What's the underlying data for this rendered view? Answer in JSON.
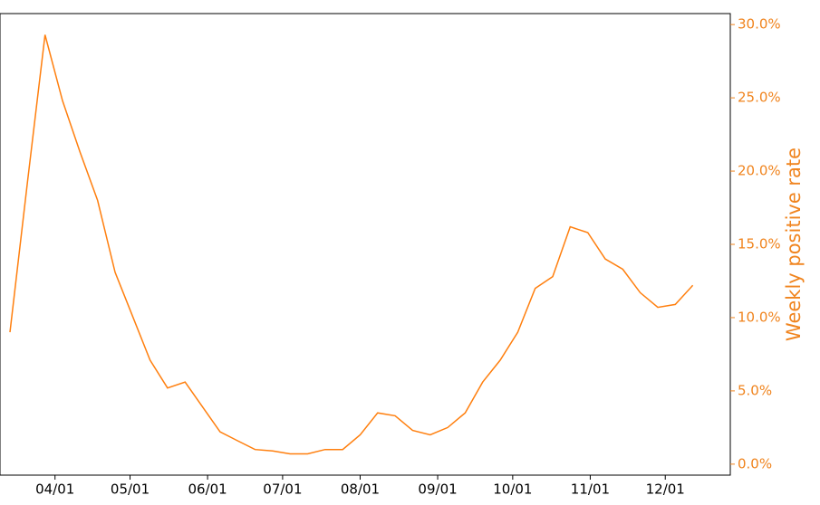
{
  "chart_data": {
    "type": "line",
    "x": [
      "03/14",
      "03/21",
      "03/28",
      "04/04",
      "04/11",
      "04/18",
      "04/25",
      "05/02",
      "05/09",
      "05/16",
      "05/23",
      "05/30",
      "06/06",
      "06/13",
      "06/20",
      "06/27",
      "07/04",
      "07/11",
      "07/18",
      "07/25",
      "08/01",
      "08/08",
      "08/15",
      "08/22",
      "08/29",
      "09/05",
      "09/12",
      "09/19",
      "09/26",
      "10/03",
      "10/10",
      "10/17",
      "10/24",
      "10/31",
      "11/07",
      "11/14",
      "11/21",
      "11/28",
      "12/05",
      "12/12"
    ],
    "series": [
      {
        "name": "Weekly positive rate",
        "color": "#ff7f0e",
        "axis": "y2",
        "values": [
          9.0,
          19.3,
          29.3,
          24.8,
          21.3,
          18.0,
          13.1,
          10.1,
          7.1,
          5.2,
          5.6,
          3.9,
          2.2,
          1.6,
          1.0,
          0.9,
          0.7,
          0.7,
          1.0,
          1.0,
          2.0,
          3.5,
          3.3,
          2.3,
          2.0,
          2.5,
          3.5,
          5.6,
          7.1,
          9.0,
          12.0,
          12.8,
          16.2,
          15.8,
          14.0,
          13.3,
          11.7,
          10.7,
          10.9,
          12.2
        ]
      }
    ],
    "xlim": [
      "03/10",
      "12/27"
    ],
    "xticks": [
      "04/01",
      "05/01",
      "06/01",
      "07/01",
      "08/01",
      "09/01",
      "10/01",
      "11/01",
      "12/01"
    ],
    "y2label": "Weekly positive rate",
    "y2lim": [
      -0.75,
      30.75
    ],
    "y2ticks": [
      {
        "value": 0,
        "label": "0.0%"
      },
      {
        "value": 5,
        "label": "5.0%"
      },
      {
        "value": 10,
        "label": "10.0%"
      },
      {
        "value": 15,
        "label": "15.0%"
      },
      {
        "value": 20,
        "label": "20.0%"
      },
      {
        "value": 25,
        "label": "25.0%"
      },
      {
        "value": 30,
        "label": "30.0%"
      }
    ],
    "axis_color": "#f0841e"
  }
}
